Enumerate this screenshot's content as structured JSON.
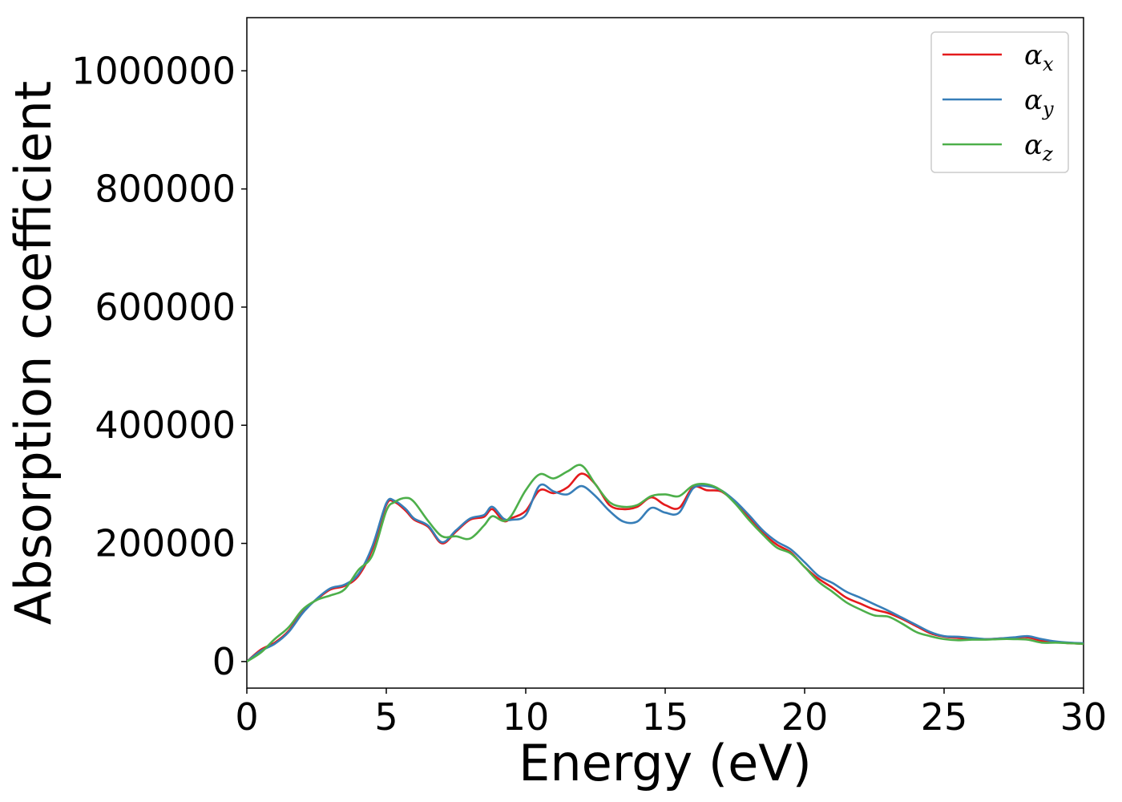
{
  "chart_data": {
    "type": "line",
    "title": "",
    "xlabel": "Energy (eV)",
    "ylabel": "Absorption coefficient",
    "xlim": [
      0,
      30
    ],
    "ylim": [
      -45000,
      1090000
    ],
    "xticks": [
      0,
      5,
      10,
      15,
      20,
      25,
      30
    ],
    "xtick_labels": [
      "0",
      "5",
      "10",
      "15",
      "20",
      "25",
      "30"
    ],
    "yticks": [
      0,
      200000,
      400000,
      600000,
      800000,
      1000000
    ],
    "ytick_labels": [
      "0",
      "200000",
      "400000",
      "600000",
      "800000",
      "1000000"
    ],
    "grid": false,
    "legend_position": "top-right",
    "series": [
      {
        "name": "α",
        "subscript": "x",
        "color": "#e41a1c",
        "x": [
          0,
          0.5,
          1,
          1.5,
          2,
          2.5,
          3,
          3.5,
          4,
          4.5,
          5,
          5.3,
          5.7,
          6,
          6.5,
          7,
          7.5,
          8,
          8.5,
          8.8,
          9.2,
          9.5,
          10,
          10.5,
          11,
          11.5,
          12,
          12.5,
          13,
          13.5,
          14,
          14.5,
          15,
          15.5,
          16,
          16.5,
          17,
          17.5,
          18,
          18.5,
          19,
          19.5,
          20,
          20.5,
          21,
          21.5,
          22,
          22.5,
          23,
          23.5,
          24,
          24.5,
          25,
          25.5,
          26,
          26.5,
          27,
          27.5,
          28,
          28.5,
          29,
          29.5,
          30
        ],
        "values": [
          0,
          20000,
          32000,
          52000,
          85000,
          105000,
          122000,
          128000,
          145000,
          190000,
          265000,
          270000,
          255000,
          240000,
          228000,
          200000,
          220000,
          240000,
          245000,
          258000,
          238000,
          243000,
          255000,
          290000,
          285000,
          295000,
          318000,
          300000,
          265000,
          258000,
          262000,
          278000,
          265000,
          260000,
          295000,
          290000,
          288000,
          270000,
          245000,
          218000,
          198000,
          185000,
          160000,
          140000,
          125000,
          108000,
          98000,
          88000,
          82000,
          72000,
          60000,
          48000,
          42000,
          40000,
          39000,
          38000,
          39000,
          40000,
          41000,
          35000,
          33000,
          31000,
          30000
        ]
      },
      {
        "name": "α",
        "subscript": "y",
        "color": "#377eb8",
        "x": [
          0,
          0.5,
          1,
          1.5,
          2,
          2.5,
          3,
          3.5,
          4,
          4.5,
          5,
          5.3,
          5.7,
          6,
          6.5,
          7,
          7.5,
          8,
          8.5,
          8.8,
          9.2,
          9.5,
          10,
          10.5,
          11,
          11.5,
          12,
          12.5,
          13,
          13.5,
          14,
          14.5,
          15,
          15.5,
          16,
          16.5,
          17,
          17.5,
          18,
          18.5,
          19,
          19.5,
          20,
          20.5,
          21,
          21.5,
          22,
          22.5,
          23,
          23.5,
          24,
          24.5,
          25,
          25.5,
          26,
          26.5,
          27,
          27.5,
          28,
          28.5,
          29,
          29.5,
          30
        ],
        "values": [
          0,
          18000,
          30000,
          50000,
          82000,
          106000,
          124000,
          130000,
          148000,
          195000,
          268000,
          272000,
          258000,
          242000,
          230000,
          202000,
          222000,
          242000,
          248000,
          262000,
          242000,
          240000,
          248000,
          298000,
          288000,
          283000,
          297000,
          280000,
          255000,
          237000,
          237000,
          260000,
          252000,
          252000,
          293000,
          297000,
          290000,
          272000,
          248000,
          222000,
          203000,
          190000,
          168000,
          145000,
          133000,
          118000,
          108000,
          97000,
          86000,
          74000,
          62000,
          50000,
          43000,
          42000,
          40000,
          38000,
          39000,
          41000,
          43000,
          38000,
          34000,
          32000,
          31000
        ]
      },
      {
        "name": "α",
        "subscript": "z",
        "color": "#4daf4a",
        "x": [
          0,
          0.5,
          1,
          1.5,
          2,
          2.5,
          3,
          3.5,
          4,
          4.5,
          5,
          5.3,
          5.7,
          6,
          6.5,
          7,
          7.5,
          8,
          8.5,
          8.8,
          9.2,
          9.5,
          10,
          10.5,
          11,
          11.5,
          12,
          12.5,
          13,
          13.5,
          14,
          14.5,
          15,
          15.5,
          16,
          16.5,
          17,
          17.5,
          18,
          18.5,
          19,
          19.5,
          20,
          20.5,
          21,
          21.5,
          22,
          22.5,
          23,
          23.5,
          24,
          24.5,
          25,
          25.5,
          26,
          26.5,
          27,
          27.5,
          28,
          28.5,
          29,
          29.5,
          30
        ],
        "values": [
          0,
          15000,
          38000,
          58000,
          88000,
          104000,
          112000,
          122000,
          155000,
          180000,
          255000,
          270000,
          277000,
          270000,
          238000,
          212000,
          212000,
          208000,
          230000,
          246000,
          238000,
          248000,
          290000,
          317000,
          310000,
          322000,
          332000,
          300000,
          270000,
          262000,
          265000,
          280000,
          283000,
          280000,
          298000,
          300000,
          290000,
          268000,
          240000,
          215000,
          193000,
          183000,
          160000,
          135000,
          118000,
          100000,
          88000,
          78000,
          76000,
          64000,
          50000,
          43000,
          38000,
          36000,
          37000,
          37000,
          38000,
          38000,
          37000,
          32000,
          32000,
          31000,
          30000
        ]
      }
    ]
  }
}
